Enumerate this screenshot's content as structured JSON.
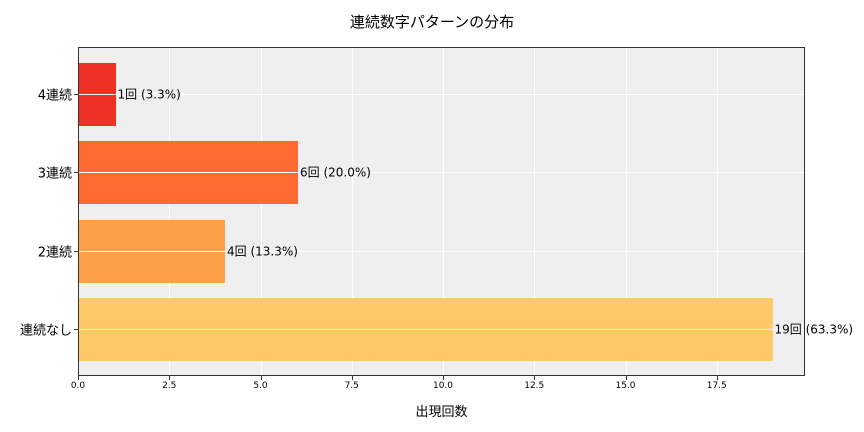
{
  "chart_data": {
    "type": "bar",
    "orientation": "horizontal",
    "title": "連続数字パターンの分布",
    "xlabel": "出現回数",
    "ylabel": "",
    "categories": [
      "4連続",
      "3連続",
      "2連続",
      "連続なし"
    ],
    "values": [
      1,
      6,
      4,
      19
    ],
    "percentages": [
      3.3,
      20.0,
      13.3,
      63.3
    ],
    "bar_labels": [
      "1回 (3.3%)",
      "6回 (20.0%)",
      "4回 (13.3%)",
      "19回 (63.3%)"
    ],
    "colors": [
      "#ee3124",
      "#fd6a32",
      "#fda048",
      "#fec966"
    ],
    "xlim": [
      0,
      19.9
    ],
    "xticks": [
      "0.0",
      "2.5",
      "5.0",
      "7.5",
      "10.0",
      "12.5",
      "15.0",
      "17.5"
    ],
    "grid": true,
    "background": "#efefef"
  }
}
